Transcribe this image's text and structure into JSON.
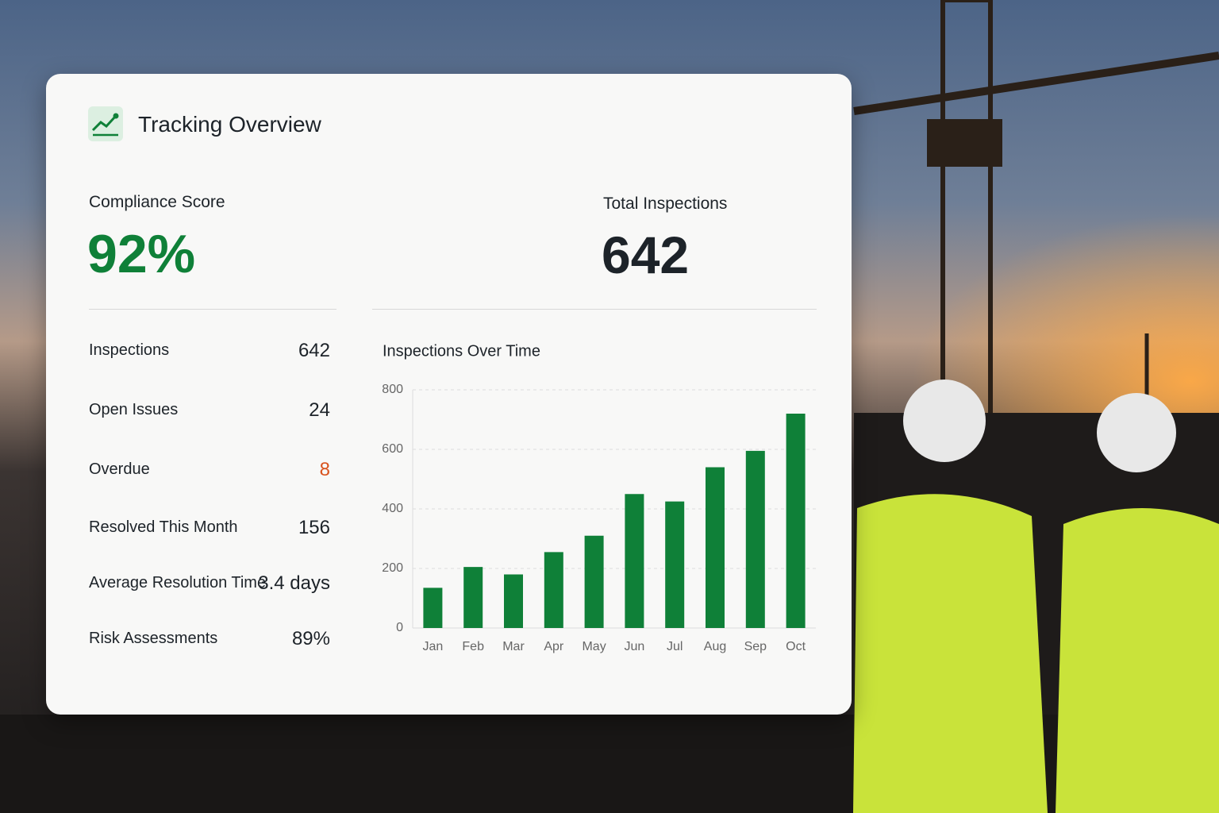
{
  "header": {
    "title": "Tracking Overview"
  },
  "kpis": [
    {
      "label": "Compliance Score",
      "value": "92%"
    },
    {
      "label": "Total Inspections",
      "value": "642"
    }
  ],
  "stats": [
    {
      "label": "Inspections",
      "value": "642"
    },
    {
      "label": "Open Issues",
      "value": "24"
    },
    {
      "label": "Overdue",
      "value": "8"
    },
    {
      "label": "Resolved This Month",
      "value": "156"
    },
    {
      "label": "Average Resolution Time",
      "value": "3.4 days"
    },
    {
      "label": "Risk Assessments",
      "value": "89%"
    }
  ],
  "chart_data": {
    "type": "bar",
    "title": "Inspections Over Time",
    "categories": [
      "Jan",
      "Feb",
      "Mar",
      "Apr",
      "May",
      "Jun",
      "Jul",
      "Aug",
      "Sep",
      "Oct"
    ],
    "values": [
      135,
      205,
      180,
      255,
      310,
      450,
      425,
      540,
      595,
      720
    ],
    "color": "#0f8038",
    "ylim": [
      0,
      800
    ],
    "yticks": [
      0,
      200,
      400,
      600,
      800
    ],
    "grid": true
  }
}
